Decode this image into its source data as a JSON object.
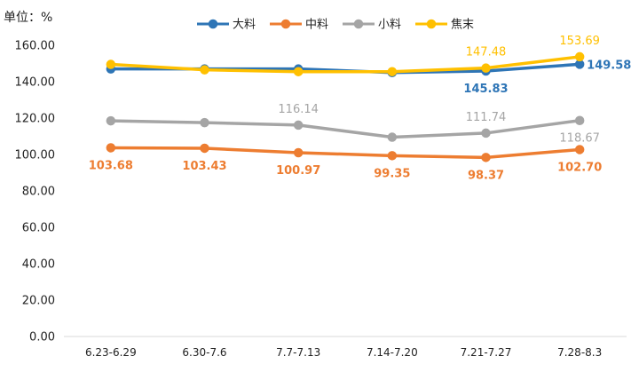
{
  "chart_data": {
    "type": "line",
    "unit_label": "单位：%",
    "categories": [
      "6.23-6.29",
      "6.30-7.6",
      "7.7-7.13",
      "7.14-7.20",
      "7.21-7.27",
      "7.28-8.3"
    ],
    "ylim": [
      0,
      160
    ],
    "yticks": [
      "0.00",
      "20.00",
      "40.00",
      "60.00",
      "80.00",
      "100.00",
      "120.00",
      "140.00",
      "160.00"
    ],
    "legend_position": "top",
    "grid": false,
    "series": [
      {
        "name": "大料",
        "color": "#2E75B6",
        "values": [
          147.0,
          147.0,
          147.0,
          145.0,
          145.83,
          149.58
        ],
        "labels": [
          {
            "index": 4,
            "text": "145.83",
            "pos": "below",
            "bold": true
          },
          {
            "index": 5,
            "text": "149.58",
            "pos": "right",
            "bold": true
          }
        ]
      },
      {
        "name": "中料",
        "color": "#ED7D31",
        "values": [
          103.68,
          103.43,
          100.97,
          99.35,
          98.37,
          102.7
        ],
        "labels": [
          {
            "index": 0,
            "text": "103.68",
            "pos": "below",
            "bold": true
          },
          {
            "index": 1,
            "text": "103.43",
            "pos": "below",
            "bold": true
          },
          {
            "index": 2,
            "text": "100.97",
            "pos": "below",
            "bold": true
          },
          {
            "index": 3,
            "text": "99.35",
            "pos": "below",
            "bold": true
          },
          {
            "index": 4,
            "text": "98.37",
            "pos": "below",
            "bold": true
          },
          {
            "index": 5,
            "text": "102.70",
            "pos": "below",
            "bold": true
          }
        ]
      },
      {
        "name": "小料",
        "color": "#A5A5A5",
        "values": [
          118.5,
          117.5,
          116.14,
          109.5,
          111.74,
          118.67
        ],
        "labels": [
          {
            "index": 2,
            "text": "116.14",
            "pos": "above",
            "bold": false
          },
          {
            "index": 4,
            "text": "111.74",
            "pos": "above",
            "bold": false
          },
          {
            "index": 5,
            "text": "118.67",
            "pos": "below",
            "bold": false
          }
        ]
      },
      {
        "name": "焦末",
        "color": "#FFC000",
        "values": [
          149.5,
          146.5,
          145.5,
          145.5,
          147.48,
          153.69
        ],
        "labels": [
          {
            "index": 4,
            "text": "147.48",
            "pos": "above",
            "bold": false
          },
          {
            "index": 5,
            "text": "153.69",
            "pos": "above",
            "bold": false
          }
        ]
      }
    ]
  }
}
